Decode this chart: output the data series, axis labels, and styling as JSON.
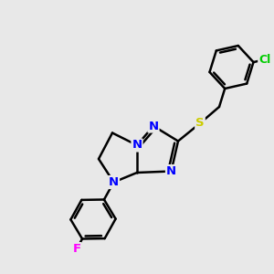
{
  "background_color": "#e8e8e8",
  "atom_colors": {
    "C": "#000000",
    "N": "#0000ff",
    "S": "#cccc00",
    "Cl": "#00cc00",
    "F": "#ff00ff"
  },
  "bond_color": "#000000",
  "bond_width": 1.8,
  "figsize": [
    3.0,
    3.0
  ],
  "dpi": 100,
  "xlim": [
    0,
    10
  ],
  "ylim": [
    0,
    10
  ]
}
